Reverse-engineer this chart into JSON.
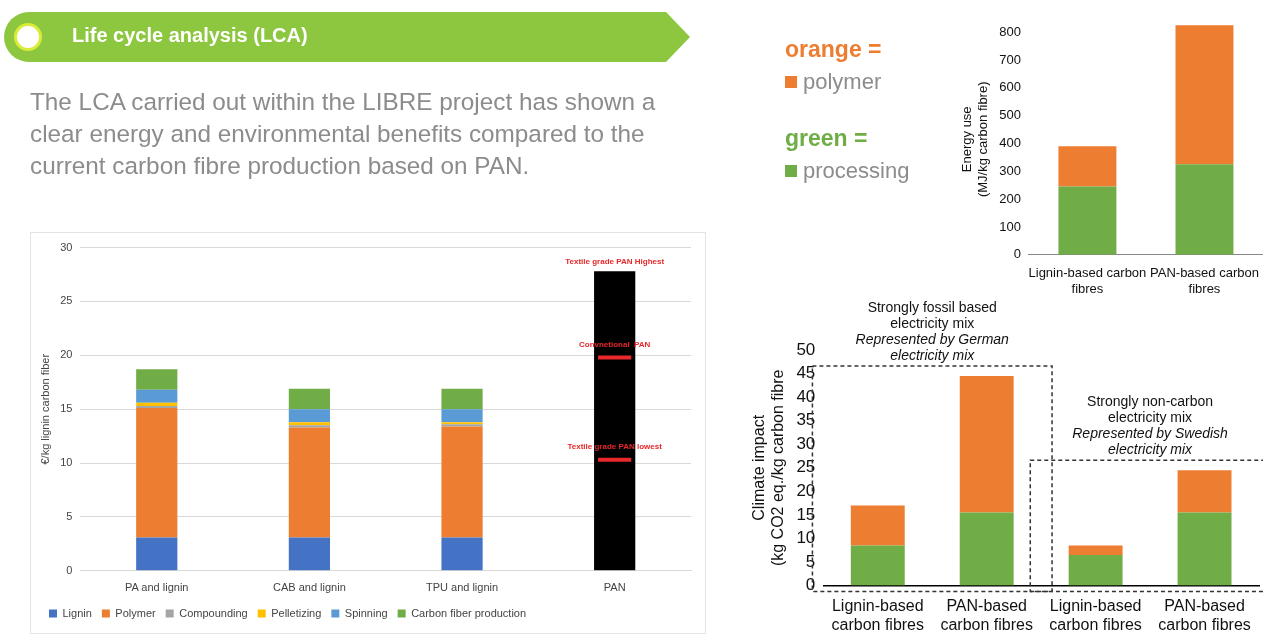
{
  "chart_data": [
    {
      "type": "other",
      "title": "Life cycle analysis (LCA)",
      "subtitle": "The LCA carried out within the LIBRE project has shown a clear energy  and environmental benefits compared to the current carbon fibre production based on  PAN."
    },
    {
      "type": "bar",
      "categories": [
        "PA and lignin",
        "CAB and lignin",
        "TPU and lignin",
        "PAN"
      ],
      "stacked": true,
      "ylabel": "€/kg lignin carbon fiber",
      "ylim": [
        0,
        30
      ],
      "yticks": [
        0,
        5,
        10,
        15,
        20,
        25,
        30
      ],
      "grid": "y",
      "legend": "bottom",
      "series": [
        {
          "name": "Lignin",
          "color": "#4472c4",
          "values": [
            3.1,
            3.1,
            3.1,
            null
          ]
        },
        {
          "name": "Polymer",
          "color": "#ed7d31",
          "values": [
            12.0,
            10.2,
            10.3,
            null
          ]
        },
        {
          "name": "Compounding",
          "color": "#a5a5a5",
          "values": [
            0.2,
            0.2,
            0.2,
            null
          ]
        },
        {
          "name": "Pelletizing",
          "color": "#ffc000",
          "values": [
            0.3,
            0.3,
            0.2,
            null
          ]
        },
        {
          "name": "Spinning",
          "color": "#5b9bd5",
          "values": [
            1.2,
            1.2,
            1.2,
            null
          ]
        },
        {
          "name": "Carbon fiber production",
          "color": "#70ad47",
          "values": [
            1.9,
            1.9,
            1.9,
            null
          ]
        },
        {
          "color": "#000000",
          "values": [
            null,
            null,
            null,
            27.8
          ]
        }
      ],
      "ref_lines": [
        {
          "axis": "y",
          "value": 19.8,
          "label": "Convnetional  PAN",
          "color": "#e8282b"
        },
        {
          "axis": "y",
          "value": 10.3,
          "label": "Textile grade PAN lowest",
          "color": "#e8282b"
        }
      ],
      "annotations": [
        {
          "text": "Textile grade PAN Highest",
          "x": "PAN",
          "y": 27.8
        }
      ]
    },
    {
      "type": "bar",
      "categories": [
        "Lignin-based carbon\nfibres",
        "PAN-based carbon\nfibres"
      ],
      "stacked": true,
      "ylabel": "Energy use\n(MJ/kg carbon fibre)",
      "ylim": [
        0,
        830
      ],
      "yticks": [
        0,
        100,
        200,
        300,
        400,
        500,
        600,
        700,
        800
      ],
      "legend": "left",
      "series": [
        {
          "name": "processing",
          "color": "#70ad47",
          "values": [
            245,
            325
          ]
        },
        {
          "name": "polymer",
          "color": "#ed7d31",
          "values": [
            145,
            500
          ]
        }
      ],
      "annotations": [
        "green =",
        "orange ="
      ]
    },
    {
      "type": "bar",
      "categories": [
        "Lignin-based\ncarbon fibres",
        "PAN-based\ncarbon fibres",
        "Lignin-based\ncarbon fibres",
        "PAN-based\ncarbon fibres"
      ],
      "stacked": true,
      "ylabel": "Climate impact\n(kg CO2 eq./kg carbon fibre",
      "ylim": [
        0,
        50
      ],
      "yticks": [
        0,
        5,
        10,
        15,
        20,
        25,
        30,
        35,
        40,
        45,
        50
      ],
      "series": [
        {
          "color": "#70ad47",
          "values": [
            8.5,
            15.5,
            6.5,
            15.5
          ]
        },
        {
          "color": "#ed7d31",
          "values": [
            8.5,
            29,
            2,
            9
          ]
        }
      ],
      "annotations": [
        "Strongly fossil based\nelectricity mix",
        "Represented by German\nelectricity mix",
        "Strongly non-carbon\nelectricity mix",
        "Represented by Swedish\nelectricity mix"
      ]
    }
  ]
}
